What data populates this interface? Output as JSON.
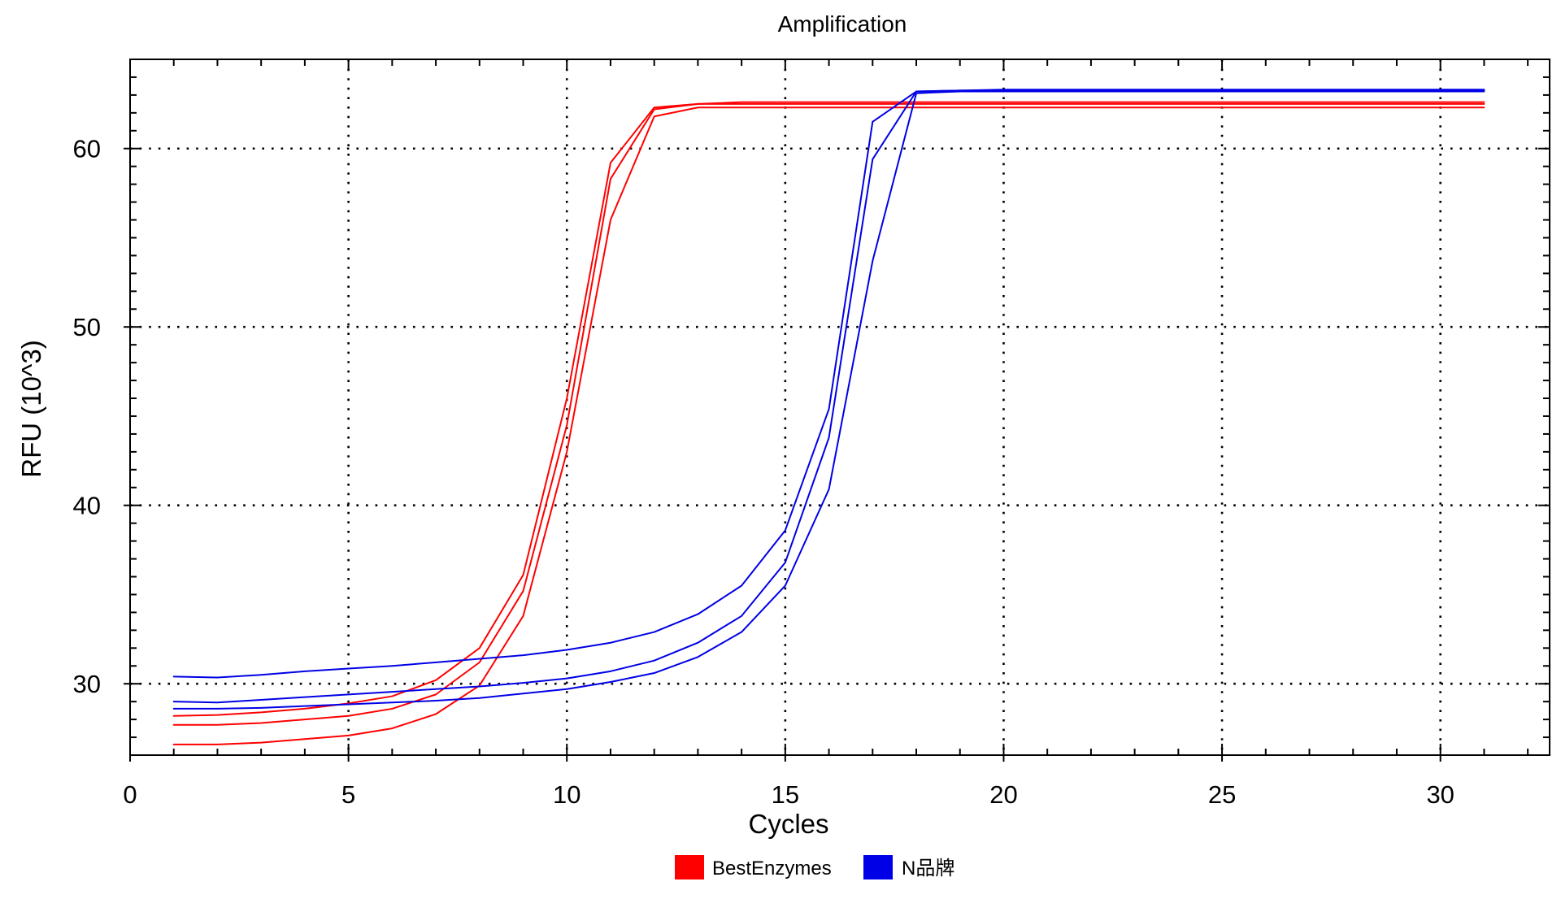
{
  "chart_data": {
    "type": "line",
    "title": "Amplification",
    "xlabel": "Cycles",
    "ylabel": "RFU (10^3)",
    "xlim": [
      0,
      32.5
    ],
    "ylim": [
      26,
      65
    ],
    "xticks": [
      0,
      5,
      10,
      15,
      20,
      25,
      30
    ],
    "yticks": [
      30,
      40,
      50,
      60
    ],
    "grid": true,
    "legend_position": "bottom-center",
    "series": [
      {
        "name": "BestEnzymes",
        "color": "#ff0000",
        "traces": [
          [
            28.2,
            28.25,
            28.4,
            28.6,
            28.9,
            29.3,
            30.2,
            32.0,
            36.1,
            46.0,
            59.2,
            62.3,
            62.5,
            62.5,
            62.5,
            62.5,
            62.5,
            62.5,
            62.5,
            62.5,
            62.5,
            62.5,
            62.5,
            62.5,
            62.5,
            62.5,
            62.5,
            62.5,
            62.5,
            62.5,
            62.5
          ],
          [
            27.7,
            27.7,
            27.8,
            28.0,
            28.2,
            28.6,
            29.4,
            31.2,
            35.2,
            44.5,
            58.3,
            62.2,
            62.5,
            62.6,
            62.6,
            62.6,
            62.6,
            62.6,
            62.6,
            62.6,
            62.6,
            62.6,
            62.6,
            62.6,
            62.6,
            62.6,
            62.6,
            62.6,
            62.6,
            62.6,
            62.6
          ],
          [
            26.6,
            26.6,
            26.7,
            26.9,
            27.1,
            27.5,
            28.3,
            29.9,
            33.8,
            43.0,
            56.0,
            61.8,
            62.3,
            62.3,
            62.3,
            62.3,
            62.3,
            62.3,
            62.3,
            62.3,
            62.3,
            62.3,
            62.3,
            62.3,
            62.3,
            62.3,
            62.3,
            62.3,
            62.3,
            62.3,
            62.3
          ]
        ]
      },
      {
        "name": "N品牌",
        "color": "#0000e6",
        "traces": [
          [
            30.4,
            30.35,
            30.5,
            30.7,
            30.85,
            31.0,
            31.2,
            31.4,
            31.6,
            31.9,
            32.3,
            32.9,
            33.9,
            35.5,
            38.6,
            45.4,
            61.5,
            63.2,
            63.25,
            63.3,
            63.3,
            63.3,
            63.3,
            63.3,
            63.3,
            63.3,
            63.3,
            63.3,
            63.3,
            63.3,
            63.3
          ],
          [
            29.0,
            28.95,
            29.1,
            29.25,
            29.4,
            29.55,
            29.7,
            29.85,
            30.05,
            30.3,
            30.7,
            31.3,
            32.3,
            33.8,
            36.8,
            43.8,
            59.4,
            63.2,
            63.25,
            63.25,
            63.25,
            63.25,
            63.25,
            63.25,
            63.25,
            63.25,
            63.25,
            63.25,
            63.25,
            63.25,
            63.25
          ],
          [
            28.6,
            28.6,
            28.65,
            28.75,
            28.85,
            28.95,
            29.05,
            29.2,
            29.45,
            29.7,
            30.1,
            30.6,
            31.5,
            32.9,
            35.5,
            40.9,
            53.7,
            63.1,
            63.2,
            63.2,
            63.2,
            63.2,
            63.2,
            63.2,
            63.2,
            63.2,
            63.2,
            63.2,
            63.2,
            63.2,
            63.2
          ]
        ]
      }
    ]
  }
}
